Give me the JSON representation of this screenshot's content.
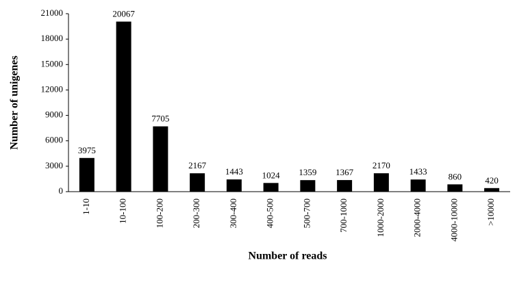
{
  "chart_data": {
    "type": "bar",
    "x_label": "Number of reads",
    "y_label": "Number of unigenes",
    "categories": [
      "1-10",
      "10-100",
      "100-200",
      "200-300",
      "300-400",
      "400-500",
      "500-700",
      "700-1000",
      "1000-2000",
      "2000-4000",
      "4000-10000",
      ">10000"
    ],
    "values": [
      3975,
      20067,
      7705,
      2167,
      1443,
      1024,
      1359,
      1367,
      2170,
      1433,
      860,
      420
    ],
    "color": "#000000",
    "ylim": [
      0,
      21000
    ],
    "yticks": [
      0,
      3000,
      6000,
      9000,
      12000,
      15000,
      18000,
      21000
    ],
    "grid": false
  }
}
